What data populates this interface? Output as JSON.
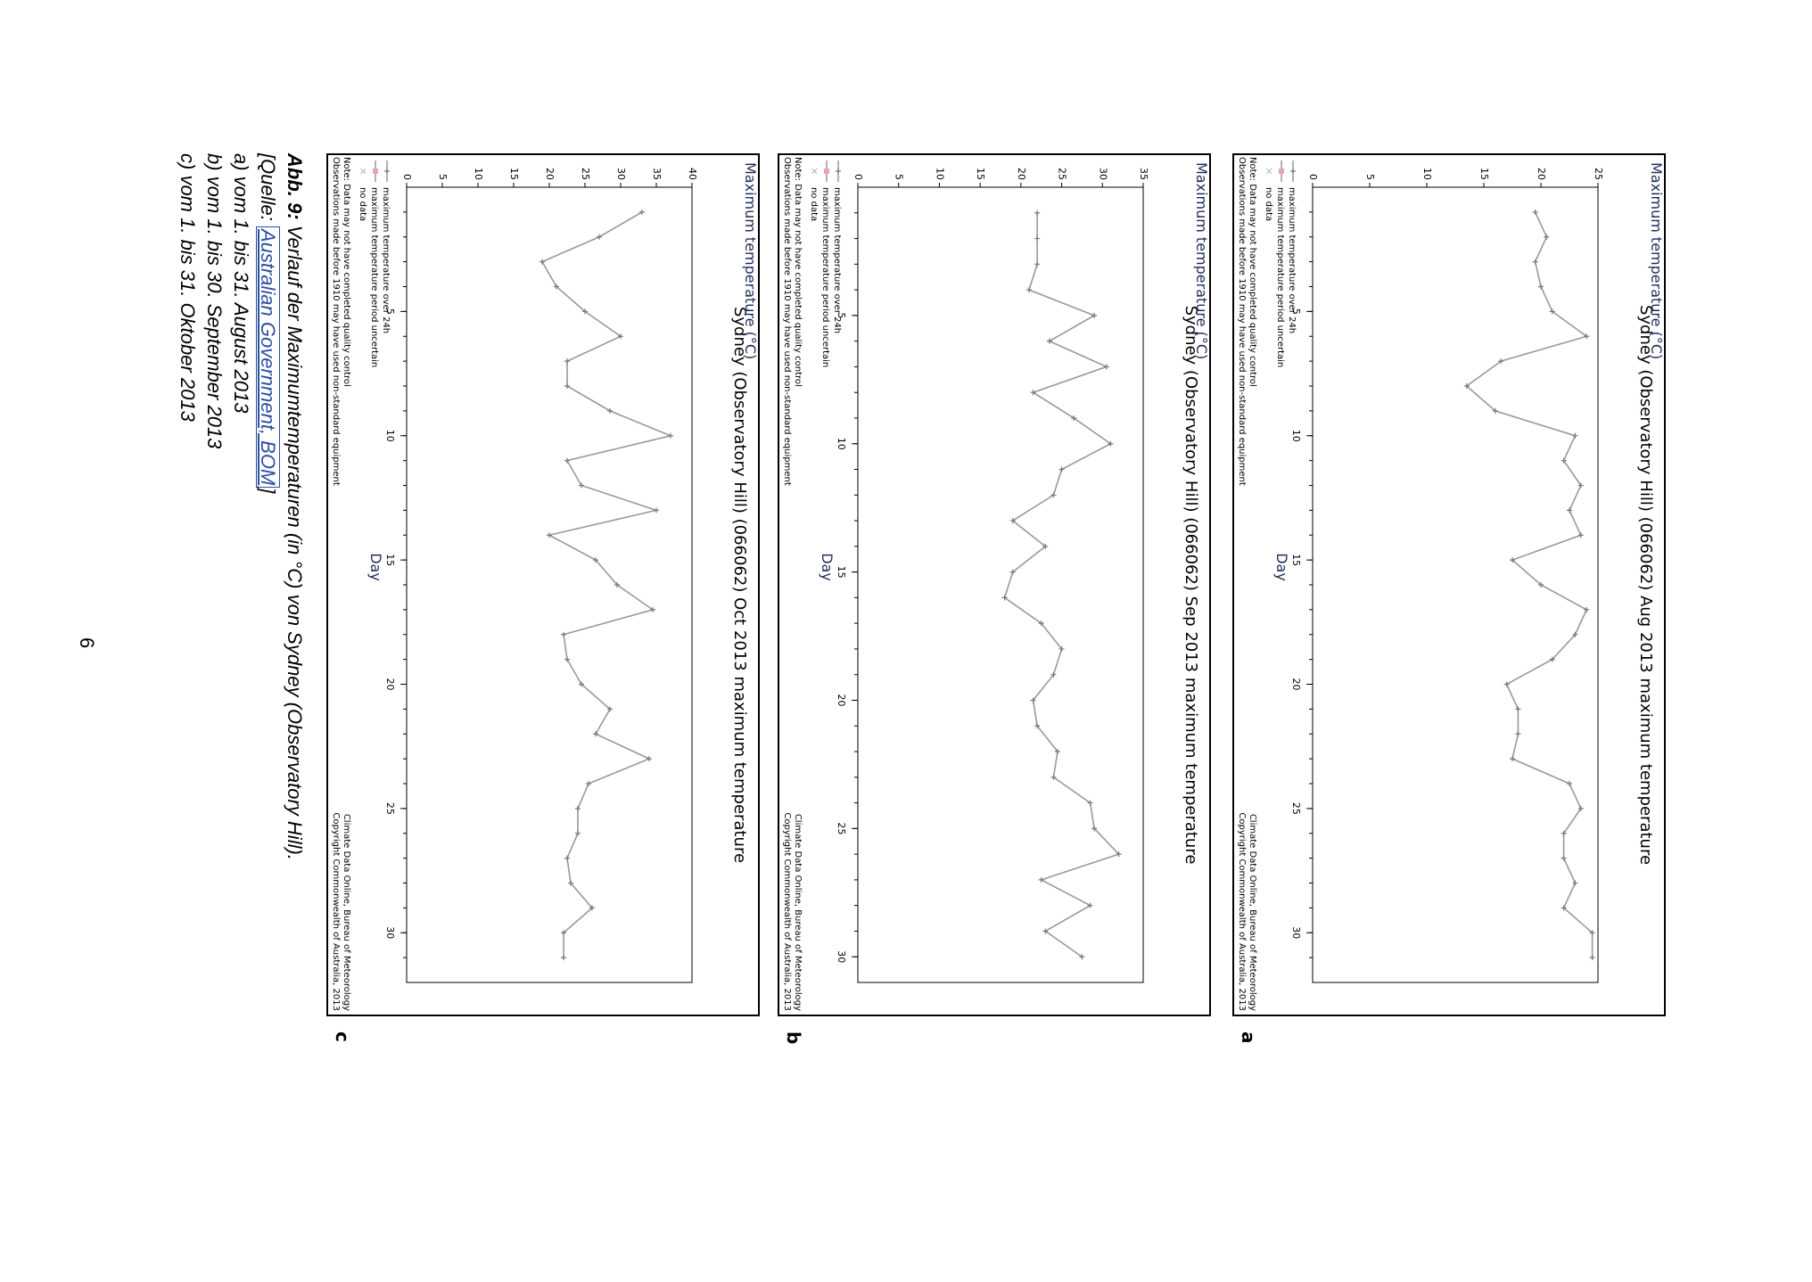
{
  "charts": [
    {
      "label": "a",
      "title": "Sydney (Observatory Hill) (066062) Aug 2013 maximum temperature",
      "ylabel": "Maximum temperature (°C)",
      "xlabel": "Day",
      "legend": [
        "maximum temperature over 24h",
        "maximum temperature period uncertain",
        "no data"
      ],
      "note": [
        "Note: Data may not have completed quality control",
        "Observations made before 1910 may have used non-standard equipment"
      ],
      "credit": [
        "Climate Data Online, Bureau of Meteorology",
        "Copyright Commonwealth of Australia, 2013"
      ]
    },
    {
      "label": "b",
      "title": "Sydney (Observatory Hill) (066062) Sep 2013 maximum temperature",
      "ylabel": "Maximum temperature (°C)",
      "xlabel": "Day",
      "legend": [
        "maximum temperature over 24h",
        "maximum temperature period uncertain",
        "no data"
      ],
      "note": [
        "Note: Data may not have completed quality control",
        "Observations made before 1910 may have used non-standard equipment"
      ],
      "credit": [
        "Climate Data Online, Bureau of Meteorology",
        "Copyright Commonwealth of Australia, 2013"
      ]
    },
    {
      "label": "c",
      "title": "Sydney (Observatory Hill) (066062) Oct 2013 maximum temperature",
      "ylabel": "Maximum temperature (°C)",
      "xlabel": "Day",
      "legend": [
        "maximum temperature over 24h",
        "maximum temperature period uncertain",
        "no data"
      ],
      "note": [
        "Note: Data may not have completed quality control",
        "Observations made before 1910 may have used non-standard equipment"
      ],
      "credit": [
        "Climate Data Online, Bureau of Meteorology",
        "Copyright Commonwealth of Australia, 2013"
      ]
    }
  ],
  "caption": {
    "abb": "Abb. 9:",
    "line1": "Verlauf der Maximumtemperaturen (in °C) von Sydney (Observatory Hill).",
    "source_open": "[Quelle: ",
    "source_link": "Australian Government, BOM",
    "source_close": "]",
    "a": "a) vom 1. bis 31. August 2013",
    "b": "b) vom 1. bis 30. September 2013",
    "c": "c) vom 1. bis 31. Oktober 2013"
  },
  "page_number": "6",
  "colors": {
    "line": "#999999",
    "axis_label": "#1f2a5a",
    "uncertain": "#e8a0c0",
    "nodata": "#aaaaaa"
  },
  "chart_data": [
    {
      "type": "line",
      "title": "Sydney (Observatory Hill) (066062) Aug 2013 maximum temperature",
      "xlabel": "Day",
      "ylabel": "Maximum temperature (°C)",
      "xlim": [
        0,
        32
      ],
      "ylim": [
        0,
        25
      ],
      "xticks": [
        5,
        10,
        15,
        20,
        25,
        30
      ],
      "yticks": [
        0,
        5,
        10,
        15,
        20,
        25
      ],
      "series": [
        {
          "name": "maximum temperature over 24h",
          "x": [
            1,
            2,
            3,
            4,
            5,
            6,
            7,
            8,
            9,
            10,
            11,
            12,
            13,
            14,
            15,
            16,
            17,
            18,
            19,
            20,
            21,
            22,
            23,
            24,
            25,
            26,
            27,
            28,
            29,
            30,
            31
          ],
          "y": [
            19.5,
            20.5,
            19.5,
            20.0,
            21.0,
            24.0,
            16.5,
            13.5,
            16.0,
            23.0,
            22.0,
            23.5,
            22.5,
            23.5,
            17.5,
            20.0,
            24.0,
            23.0,
            21.0,
            17.0,
            18.0,
            18.0,
            17.5,
            22.5,
            23.5,
            22.0,
            22.0,
            23.0,
            22.0,
            24.5,
            24.5
          ]
        }
      ],
      "grid": false,
      "legend_placement": "bottom-left"
    },
    {
      "type": "line",
      "title": "Sydney (Observatory Hill) (066062) Sep 2013 maximum temperature",
      "xlabel": "Day",
      "ylabel": "Maximum temperature (°C)",
      "xlim": [
        0,
        31
      ],
      "ylim": [
        0,
        35
      ],
      "xticks": [
        5,
        10,
        15,
        20,
        25,
        30
      ],
      "yticks": [
        0,
        5,
        10,
        15,
        20,
        25,
        30,
        35
      ],
      "series": [
        {
          "name": "maximum temperature over 24h",
          "x": [
            1,
            2,
            3,
            4,
            5,
            6,
            7,
            8,
            9,
            10,
            11,
            12,
            13,
            14,
            15,
            16,
            17,
            18,
            19,
            20,
            21,
            22,
            23,
            24,
            25,
            26,
            27,
            28,
            29,
            30
          ],
          "y": [
            22.0,
            22.0,
            22.0,
            21.0,
            29.0,
            23.5,
            30.5,
            21.5,
            26.5,
            31.0,
            25.0,
            24.0,
            19.0,
            23.0,
            19.0,
            18.0,
            22.5,
            25.0,
            24.0,
            21.5,
            22.0,
            24.5,
            24.0,
            28.5,
            29.0,
            32.0,
            22.5,
            28.5,
            23.0,
            27.5
          ]
        }
      ],
      "grid": false,
      "legend_placement": "bottom-left"
    },
    {
      "type": "line",
      "title": "Sydney (Observatory Hill) (066062) Oct 2013 maximum temperature",
      "xlabel": "Day",
      "ylabel": "Maximum temperature (°C)",
      "xlim": [
        0,
        32
      ],
      "ylim": [
        0,
        40
      ],
      "xticks": [
        5,
        10,
        15,
        20,
        25,
        30
      ],
      "yticks": [
        0,
        5,
        10,
        15,
        20,
        25,
        30,
        35,
        40
      ],
      "series": [
        {
          "name": "maximum temperature over 24h",
          "x": [
            1,
            2,
            3,
            4,
            5,
            6,
            7,
            8,
            9,
            10,
            11,
            12,
            13,
            14,
            15,
            16,
            17,
            18,
            19,
            20,
            21,
            22,
            23,
            24,
            25,
            26,
            27,
            28,
            29,
            30,
            31
          ],
          "y": [
            33.0,
            27.0,
            19.0,
            21.0,
            25.0,
            30.0,
            22.5,
            22.5,
            28.5,
            37.0,
            22.5,
            24.5,
            35.0,
            20.0,
            26.5,
            29.5,
            34.5,
            22.0,
            22.5,
            24.5,
            28.5,
            26.5,
            34.0,
            25.5,
            24.0,
            24.0,
            22.5,
            23.0,
            26.0,
            22.0,
            22.0
          ]
        }
      ],
      "grid": false,
      "legend_placement": "bottom-left"
    }
  ]
}
